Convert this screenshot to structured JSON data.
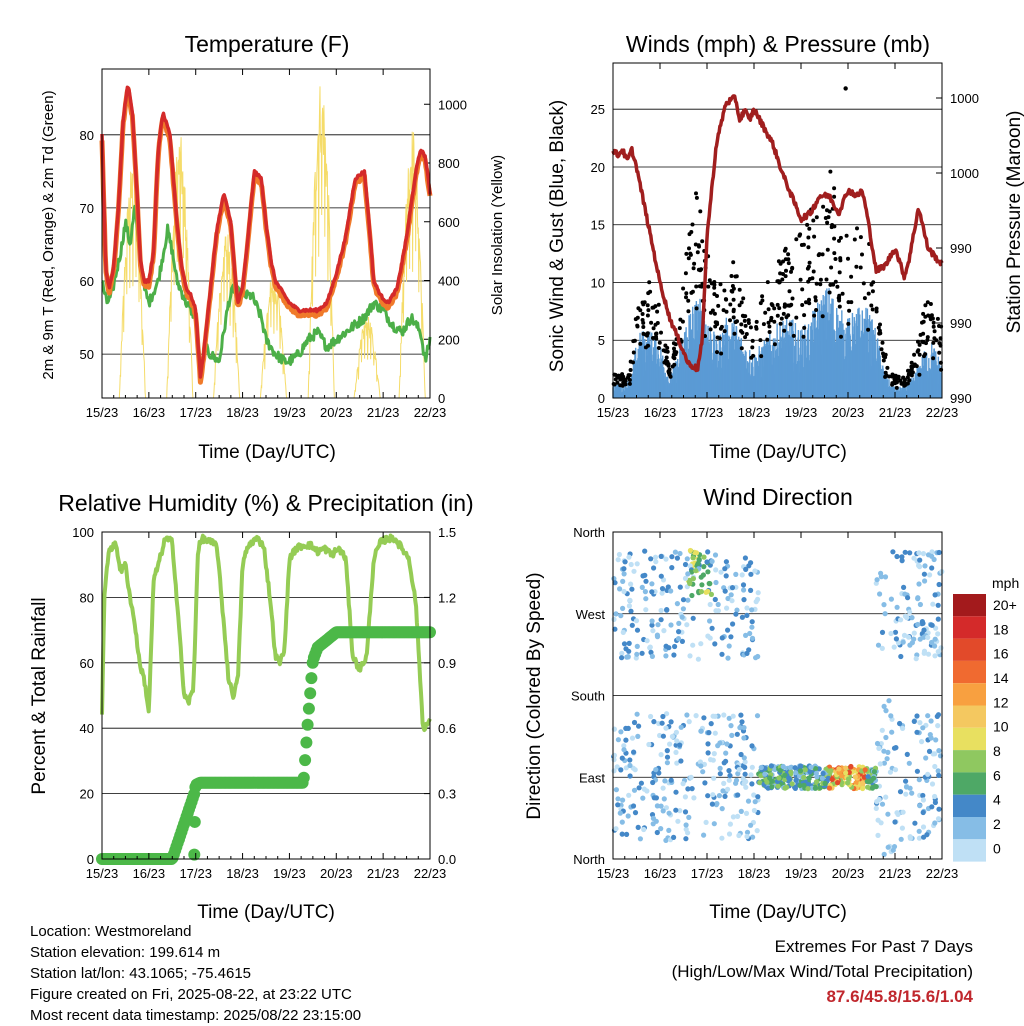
{
  "info": {
    "location": "Location: Westmoreland",
    "elevation": "Station elevation: 199.614 m",
    "latlon": "Station lat/lon: 43.1065; -75.4615",
    "created": "Figure created on Fri, 2025-08-22, at 23:22 UTC",
    "recent": "Most recent data timestamp: 2025/08/22 23:15:00"
  },
  "extremes": {
    "title": "Extremes For Past 7 Days",
    "subtitle": "(High/Low/Max Wind/Total Precipitation)",
    "values": "87.6/45.8/15.6/1.04"
  },
  "x_ticks": [
    "15/23",
    "16/23",
    "17/23",
    "18/23",
    "19/23",
    "20/23",
    "21/23",
    "22/23"
  ],
  "xlabel": "Time (Day/UTC)",
  "colors": {
    "temp2m": "#d42a2a",
    "temp9m": "#f07a2a",
    "dewpoint": "#4caf48",
    "solar": "#f5dc6a",
    "wind": "#5b9bd5",
    "gust": "#000000",
    "pressure": "#a01e1e",
    "rh": "#95cc55",
    "precip": "#4cb848"
  },
  "chart_data": [
    {
      "type": "line",
      "title": "Temperature (F)",
      "ylabel": "2m & 9m T (Red, Orange) & 2m Td (Green)",
      "y2label": "Solar Insolation (Yellow)",
      "ylim": [
        44,
        89
      ],
      "y2lim": [
        0,
        1120
      ],
      "yticks": [
        50,
        60,
        70,
        80
      ],
      "y2ticks": [
        0,
        200,
        400,
        600,
        800,
        1000
      ],
      "xlim": [
        0,
        7
      ],
      "series": [
        {
          "key": "temp2m",
          "x": [
            0,
            0.08,
            0.15,
            0.25,
            0.35,
            0.45,
            0.55,
            0.65,
            0.75,
            0.82,
            0.9,
            1.0,
            1.1,
            1.2,
            1.3,
            1.45,
            1.6,
            1.7,
            1.8,
            1.9,
            2.0,
            2.1,
            2.15,
            2.3,
            2.45,
            2.6,
            2.75,
            2.85,
            2.9,
            3.0,
            3.1,
            3.25,
            3.4,
            3.5,
            3.6,
            3.7,
            3.8,
            3.9,
            4.0,
            4.2,
            4.4,
            4.6,
            4.8,
            5.0,
            5.2,
            5.4,
            5.6,
            5.7,
            5.8,
            5.95,
            6.1,
            6.3,
            6.5,
            6.7,
            6.8,
            6.9,
            7.0
          ],
          "values": [
            80,
            62,
            59,
            62,
            70,
            82,
            87,
            83,
            72,
            63,
            60,
            60,
            64,
            78,
            83,
            80,
            68,
            62,
            59,
            58,
            56,
            47,
            49,
            58,
            67,
            72,
            68,
            60,
            57,
            59,
            65,
            75,
            74,
            68,
            63,
            60,
            59,
            58,
            57,
            56,
            56,
            56,
            57,
            61,
            66,
            74,
            75,
            68,
            60,
            58,
            57,
            59,
            66,
            75,
            78,
            77,
            72
          ]
        },
        {
          "key": "dewpoint",
          "x": [
            0,
            0.1,
            0.2,
            0.4,
            0.5,
            0.6,
            0.7,
            0.8,
            0.9,
            1.0,
            1.2,
            1.4,
            1.5,
            1.6,
            1.8,
            2.0,
            2.1,
            2.2,
            2.3,
            2.5,
            2.7,
            2.8,
            3.0,
            3.2,
            3.4,
            3.5,
            3.7,
            3.9,
            4.0,
            4.2,
            4.4,
            4.6,
            4.8,
            5.0,
            5.2,
            5.4,
            5.6,
            5.8,
            6.0,
            6.2,
            6.4,
            6.6,
            6.8,
            6.9,
            7.0
          ],
          "values": [
            60,
            57,
            58,
            64,
            68,
            65,
            70,
            64,
            59,
            57,
            60,
            67,
            64,
            60,
            57,
            55,
            47,
            51,
            50,
            49,
            57,
            59,
            58,
            58,
            55,
            52,
            50,
            49,
            49,
            50,
            52,
            53,
            51,
            52,
            53,
            54,
            55,
            57,
            56,
            54,
            53,
            55,
            53,
            49,
            52
          ]
        },
        {
          "key": "solar",
          "peaks": [
            [
              0.65,
              800
            ],
            [
              1.66,
              900
            ],
            [
              2.66,
              580
            ],
            [
              3.66,
              430
            ],
            [
              4.68,
              1100
            ],
            [
              5.66,
              280
            ],
            [
              6.62,
              930
            ]
          ]
        }
      ]
    },
    {
      "type": "line",
      "title": "Winds (mph) & Pressure (mb)",
      "ylabel": "Sonic Wind & Gust (Blue, Black)",
      "y2label": "Station Pressure (Maroon)",
      "ylim": [
        0,
        29
      ],
      "yticks": [
        0,
        5,
        10,
        15,
        20,
        25
      ],
      "y2ticks": [
        "990",
        "990",
        "990",
        "1000",
        "1000"
      ],
      "xlim": [
        0,
        7
      ],
      "pressure": {
        "x": [
          0,
          0.1,
          0.2,
          0.3,
          0.4,
          0.5,
          0.6,
          0.7,
          0.8,
          0.9,
          1.0,
          1.2,
          1.4,
          1.6,
          1.8,
          1.9,
          2.0,
          2.2,
          2.4,
          2.6,
          2.7,
          2.8,
          2.9,
          3.0,
          3.2,
          3.4,
          3.6,
          3.8,
          4.0,
          4.2,
          4.4,
          4.6,
          4.8,
          5.0,
          5.2,
          5.3,
          5.4,
          5.6,
          5.8,
          6.0,
          6.2,
          6.3,
          6.5,
          6.7,
          6.9,
          7.0
        ],
        "values": [
          21.5,
          21.0,
          21.5,
          20.5,
          21.5,
          20,
          18,
          16,
          14,
          12,
          10,
          7,
          5,
          3,
          2.5,
          5,
          14,
          22,
          25.5,
          26,
          24,
          25,
          24,
          25,
          23.5,
          22,
          19.5,
          17.5,
          15.5,
          16,
          17.5,
          17.5,
          16,
          18,
          17.5,
          18,
          16,
          11,
          11.5,
          13,
          10.5,
          12,
          16.5,
          13,
          12,
          11.5
        ]
      }
    },
    {
      "type": "line",
      "title": "Relative Humidity (%) & Precipitation (in)",
      "ylabel": "Percent & Total Rainfall",
      "ylim": [
        0,
        100
      ],
      "yticks": [
        0,
        20,
        40,
        60,
        80,
        100
      ],
      "y2ticks": [
        "0.0",
        "0.3",
        "0.6",
        "0.9",
        "1.2",
        "1.5"
      ],
      "xlim": [
        0,
        7
      ],
      "rh": {
        "x": [
          0,
          0.05,
          0.15,
          0.3,
          0.4,
          0.5,
          0.6,
          0.7,
          0.8,
          0.9,
          1.0,
          1.1,
          1.2,
          1.35,
          1.5,
          1.65,
          1.75,
          1.85,
          1.95,
          2.05,
          2.15,
          2.3,
          2.45,
          2.6,
          2.7,
          2.8,
          2.9,
          3.0,
          3.1,
          3.2,
          3.3,
          3.45,
          3.6,
          3.7,
          3.8,
          3.9,
          4.0,
          4.15,
          4.3,
          4.45,
          4.6,
          4.75,
          4.9,
          5.05,
          5.2,
          5.35,
          5.5,
          5.65,
          5.8,
          5.95,
          6.1,
          6.25,
          6.4,
          6.55,
          6.7,
          6.85,
          7.0
        ],
        "values": [
          45,
          80,
          95,
          96,
          88,
          90,
          80,
          72,
          60,
          55,
          45,
          85,
          90,
          98,
          97,
          70,
          50,
          48,
          52,
          95,
          98,
          97,
          96,
          72,
          55,
          50,
          55,
          90,
          95,
          97,
          98,
          96,
          78,
          62,
          60,
          65,
          92,
          95,
          96,
          96,
          94,
          95,
          93,
          95,
          92,
          62,
          58,
          62,
          92,
          97,
          98,
          98,
          95,
          92,
          78,
          40,
          42
        ]
      },
      "precip": {
        "x": [
          0,
          1.5,
          1.97,
          2.0,
          2.1,
          4.3,
          4.4,
          4.5,
          4.6,
          5.0,
          7.0
        ],
        "values": [
          0,
          0,
          0.3,
          0.34,
          0.35,
          0.35,
          0.65,
          0.91,
          0.97,
          1.04,
          1.04
        ]
      }
    },
    {
      "type": "scatter",
      "title": "Wind Direction",
      "ylabel": "Direction (Colored By Speed)",
      "ytick_labels": [
        "North",
        "East",
        "South",
        "West",
        "North"
      ],
      "legend_title": "mph",
      "legend_labels": [
        "20+",
        "18",
        "16",
        "14",
        "12",
        "10",
        "8",
        "6",
        "4",
        "2",
        "0"
      ],
      "legend_colors": [
        "#a31a1c",
        "#d42a2a",
        "#e24a2a",
        "#f06a30",
        "#f8a040",
        "#f4c860",
        "#e8e060",
        "#8fc860",
        "#4ea866",
        "#4488c8",
        "#86bde6",
        "#bfe0f5"
      ],
      "xlim": [
        0,
        7
      ]
    }
  ]
}
